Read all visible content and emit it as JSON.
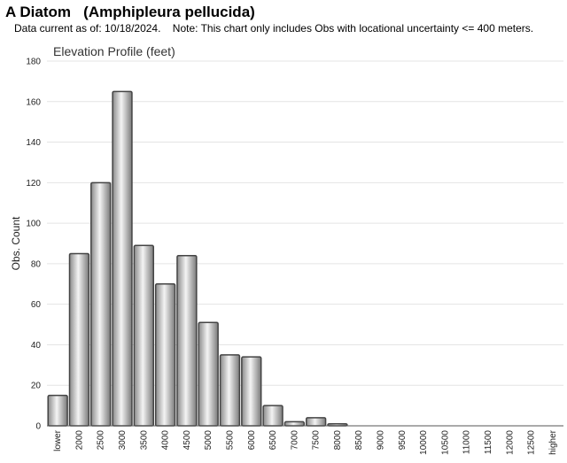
{
  "header": {
    "species_common": "A Diatom",
    "species_latin": "(Amphipleura pellucida)",
    "note": "Data current as of: 10/18/2024.    Note: This chart only includes Obs with locational uncertainty <= 400 meters."
  },
  "chart_data": {
    "type": "bar",
    "title": "Elevation Profile (feet)",
    "xlabel": "",
    "ylabel": "Obs. Count",
    "ylim": [
      0,
      180
    ],
    "yticks": [
      0,
      20,
      40,
      60,
      80,
      100,
      120,
      140,
      160,
      180
    ],
    "grid": true,
    "categories": [
      "lower",
      "2000",
      "2500",
      "3000",
      "3500",
      "4000",
      "4500",
      "5000",
      "5500",
      "6000",
      "6500",
      "7000",
      "7500",
      "8000",
      "8500",
      "9000",
      "9500",
      "10000",
      "10500",
      "11000",
      "11500",
      "12000",
      "12500",
      "higher"
    ],
    "values": [
      15,
      85,
      120,
      165,
      89,
      70,
      84,
      51,
      35,
      34,
      10,
      2,
      4,
      1,
      0,
      0,
      0,
      0,
      0,
      0,
      0,
      0,
      0,
      0
    ],
    "bar_color": "#b8b8b8",
    "edge_color": "#444444"
  }
}
